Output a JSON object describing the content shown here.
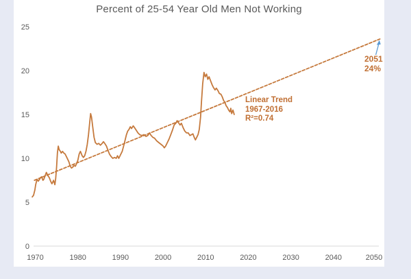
{
  "page": {
    "background_color": "#e7eaf4",
    "card_color": "#ffffff"
  },
  "chart_data": {
    "type": "line",
    "title": "Percent of 25-54 Year Old Men Not Working",
    "title_color": "#595959",
    "axis_label_color": "#595959",
    "baseline_color": "#d9d9d9",
    "grid": false,
    "legend": "none",
    "xlim": [
      1970,
      2050
    ],
    "ylim": [
      0,
      25
    ],
    "x_ticks": [
      1970,
      1980,
      1990,
      2000,
      2010,
      2020,
      2030,
      2040,
      2050
    ],
    "y_ticks": [
      0,
      5,
      10,
      15,
      20,
      25
    ],
    "series": [
      {
        "name": "percent-not-working",
        "label": "Percent of 25-54 year old men not working (monthly, 1967-2016)",
        "style": "solid",
        "color": "#c5793c",
        "points": [
          [
            1969.3,
            5.6
          ],
          [
            1969.6,
            5.8
          ],
          [
            1969.9,
            6.4
          ],
          [
            1970.1,
            7.0
          ],
          [
            1970.4,
            7.6
          ],
          [
            1970.7,
            7.4
          ],
          [
            1971.0,
            7.6
          ],
          [
            1971.2,
            7.8
          ],
          [
            1971.5,
            7.9
          ],
          [
            1971.8,
            7.5
          ],
          [
            1972.0,
            7.6
          ],
          [
            1972.3,
            8.0
          ],
          [
            1972.6,
            8.4
          ],
          [
            1972.8,
            8.2
          ],
          [
            1973.0,
            8.0
          ],
          [
            1973.3,
            7.8
          ],
          [
            1973.6,
            7.4
          ],
          [
            1973.9,
            7.1
          ],
          [
            1974.1,
            7.3
          ],
          [
            1974.3,
            7.5
          ],
          [
            1974.6,
            7.0
          ],
          [
            1974.8,
            7.7
          ],
          [
            1975.0,
            9.0
          ],
          [
            1975.2,
            10.6
          ],
          [
            1975.4,
            11.4
          ],
          [
            1975.6,
            11.0
          ],
          [
            1975.9,
            10.8
          ],
          [
            1976.1,
            10.6
          ],
          [
            1976.4,
            10.8
          ],
          [
            1976.7,
            10.6
          ],
          [
            1977.0,
            10.5
          ],
          [
            1977.3,
            10.2
          ],
          [
            1977.6,
            9.9
          ],
          [
            1977.9,
            9.6
          ],
          [
            1978.2,
            9.1
          ],
          [
            1978.5,
            8.9
          ],
          [
            1978.8,
            9.0
          ],
          [
            1979.1,
            9.2
          ],
          [
            1979.4,
            9.1
          ],
          [
            1979.7,
            9.4
          ],
          [
            1980.0,
            9.8
          ],
          [
            1980.3,
            10.5
          ],
          [
            1980.6,
            10.8
          ],
          [
            1981.0,
            10.3
          ],
          [
            1981.3,
            10.1
          ],
          [
            1981.6,
            10.3
          ],
          [
            1981.9,
            10.8
          ],
          [
            1982.2,
            11.6
          ],
          [
            1982.5,
            12.7
          ],
          [
            1982.8,
            14.2
          ],
          [
            1983.0,
            15.1
          ],
          [
            1983.2,
            14.7
          ],
          [
            1983.5,
            13.5
          ],
          [
            1983.8,
            12.4
          ],
          [
            1984.1,
            11.8
          ],
          [
            1984.5,
            11.6
          ],
          [
            1984.9,
            11.7
          ],
          [
            1985.3,
            11.5
          ],
          [
            1985.7,
            11.7
          ],
          [
            1986.0,
            11.9
          ],
          [
            1986.3,
            11.7
          ],
          [
            1986.7,
            11.4
          ],
          [
            1987.0,
            11.0
          ],
          [
            1987.4,
            10.5
          ],
          [
            1987.8,
            10.2
          ],
          [
            1988.2,
            10.0
          ],
          [
            1988.6,
            10.1
          ],
          [
            1989.0,
            10.0
          ],
          [
            1989.3,
            10.3
          ],
          [
            1989.6,
            10.0
          ],
          [
            1990.0,
            10.4
          ],
          [
            1990.4,
            10.8
          ],
          [
            1990.8,
            11.5
          ],
          [
            1991.1,
            12.1
          ],
          [
            1991.4,
            12.7
          ],
          [
            1991.7,
            13.1
          ],
          [
            1992.0,
            13.3
          ],
          [
            1992.3,
            13.6
          ],
          [
            1992.6,
            13.4
          ],
          [
            1993.0,
            13.7
          ],
          [
            1993.3,
            13.5
          ],
          [
            1993.7,
            13.2
          ],
          [
            1994.1,
            12.9
          ],
          [
            1994.5,
            12.7
          ],
          [
            1995.0,
            12.6
          ],
          [
            1995.5,
            12.7
          ],
          [
            1996.0,
            12.5
          ],
          [
            1996.4,
            12.6
          ],
          [
            1996.8,
            12.9
          ],
          [
            1997.2,
            12.6
          ],
          [
            1997.6,
            12.4
          ],
          [
            1998.0,
            12.3
          ],
          [
            1998.5,
            12.0
          ],
          [
            1999.0,
            11.8
          ],
          [
            1999.5,
            11.6
          ],
          [
            2000.0,
            11.4
          ],
          [
            2000.3,
            11.2
          ],
          [
            2000.6,
            11.4
          ],
          [
            2001.0,
            11.8
          ],
          [
            2001.4,
            12.2
          ],
          [
            2001.8,
            12.7
          ],
          [
            2002.2,
            13.2
          ],
          [
            2002.6,
            13.8
          ],
          [
            2003.0,
            14.0
          ],
          [
            2003.3,
            14.3
          ],
          [
            2003.7,
            14.0
          ],
          [
            2004.0,
            13.8
          ],
          [
            2004.3,
            14.0
          ],
          [
            2004.7,
            13.5
          ],
          [
            2005.1,
            13.1
          ],
          [
            2005.5,
            12.9
          ],
          [
            2005.9,
            12.9
          ],
          [
            2006.3,
            12.6
          ],
          [
            2006.7,
            12.7
          ],
          [
            2007.0,
            12.8
          ],
          [
            2007.3,
            12.4
          ],
          [
            2007.6,
            12.1
          ],
          [
            2007.9,
            12.4
          ],
          [
            2008.2,
            12.7
          ],
          [
            2008.5,
            13.3
          ],
          [
            2008.8,
            14.7
          ],
          [
            2009.0,
            16.3
          ],
          [
            2009.3,
            18.5
          ],
          [
            2009.6,
            19.8
          ],
          [
            2009.9,
            19.3
          ],
          [
            2010.2,
            19.6
          ],
          [
            2010.5,
            19.0
          ],
          [
            2010.8,
            19.3
          ],
          [
            2011.1,
            18.9
          ],
          [
            2011.5,
            18.4
          ],
          [
            2011.8,
            18.1
          ],
          [
            2012.2,
            17.8
          ],
          [
            2012.5,
            18.0
          ],
          [
            2012.9,
            17.7
          ],
          [
            2013.2,
            17.4
          ],
          [
            2013.6,
            17.3
          ],
          [
            2013.9,
            17.0
          ],
          [
            2014.2,
            16.6
          ],
          [
            2014.5,
            16.4
          ],
          [
            2014.8,
            16.0
          ],
          [
            2015.1,
            15.8
          ],
          [
            2015.4,
            15.5
          ],
          [
            2015.7,
            15.3
          ],
          [
            2015.9,
            15.7
          ],
          [
            2016.1,
            15.1
          ],
          [
            2016.4,
            15.5
          ],
          [
            2016.7,
            15.0
          ]
        ]
      },
      {
        "name": "linear-trend",
        "label": "Linear trend 1967-2016 extended to 2051",
        "style": "dashed",
        "color": "#c5793c",
        "points": [
          [
            1969.8,
            7.5
          ],
          [
            2050.9,
            23.6
          ]
        ]
      }
    ],
    "annotations": {
      "trend_label": {
        "lines": [
          "Linear Trend",
          "1967-2016",
          "R²=0.74"
        ],
        "color": "#c06f33"
      },
      "endpoint_label": {
        "lines": [
          "2051",
          "24%"
        ],
        "color": "#c06f33",
        "arrow_color": "#5b9bd5"
      }
    }
  }
}
